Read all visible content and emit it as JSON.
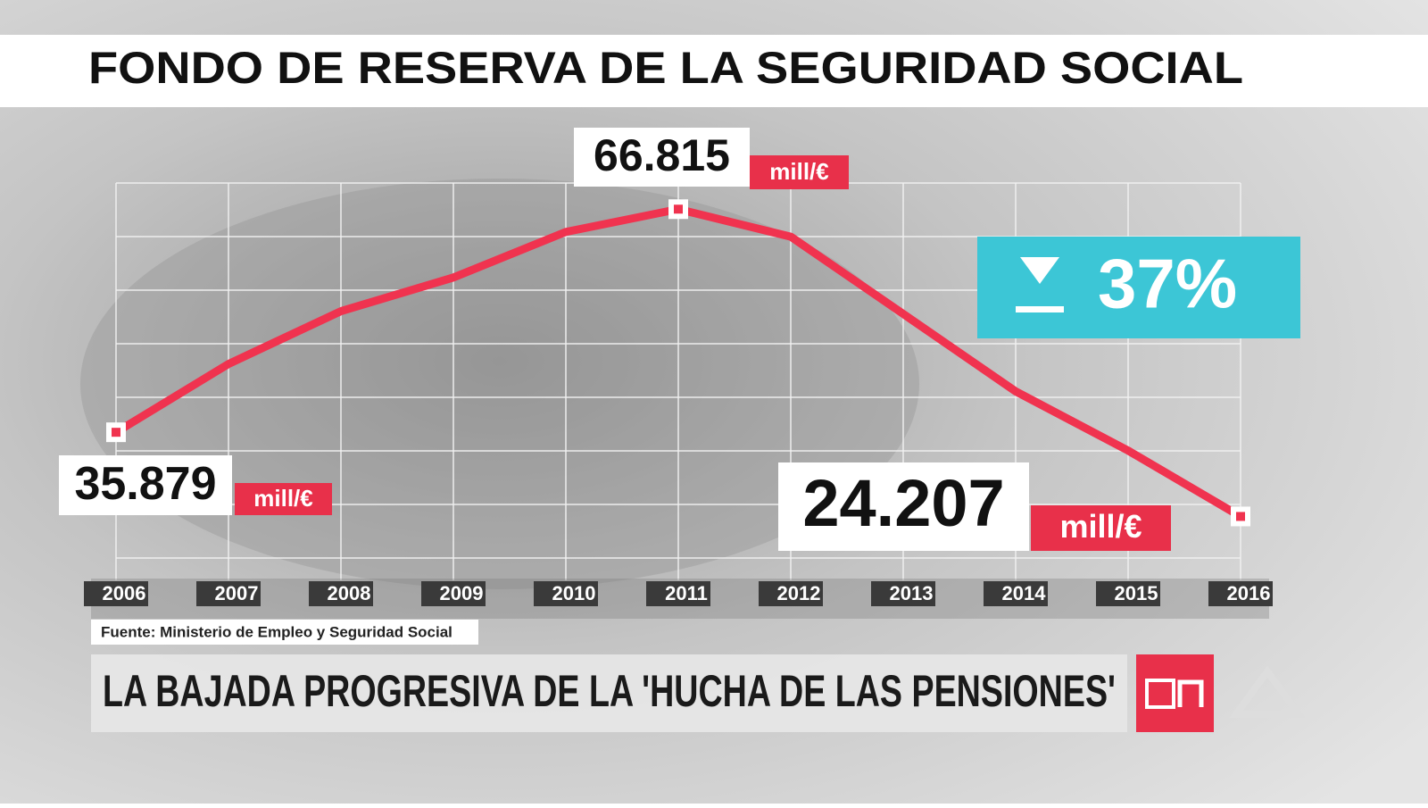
{
  "chart_data": {
    "type": "line",
    "title": "FONDO DE RESERVA DE LA SEGURIDAD SOCIAL",
    "categories": [
      "2006",
      "2007",
      "2008",
      "2009",
      "2010",
      "2011",
      "2012",
      "2013",
      "2014",
      "2015",
      "2016"
    ],
    "series": [
      {
        "name": null,
        "color": "#f0334f",
        "values": [
          35879,
          45350,
          52670,
          57340,
          63660,
          66815,
          63000,
          52290,
          41550,
          33340,
          24207
        ],
        "value_labels": [
          "35.879",
          null,
          null,
          null,
          null,
          "66.815",
          null,
          null,
          null,
          null,
          "24.207"
        ]
      }
    ],
    "unit": "mill/€",
    "change": {
      "value": 37,
      "label": "37%"
    },
    "source": "Fuente: Ministerio de Empleo y Seguridad Social",
    "headline": "LA BAJADA PROGRESIVA DE LA 'HUCHA DE LAS PENSIONES'",
    "grid": true
  }
}
